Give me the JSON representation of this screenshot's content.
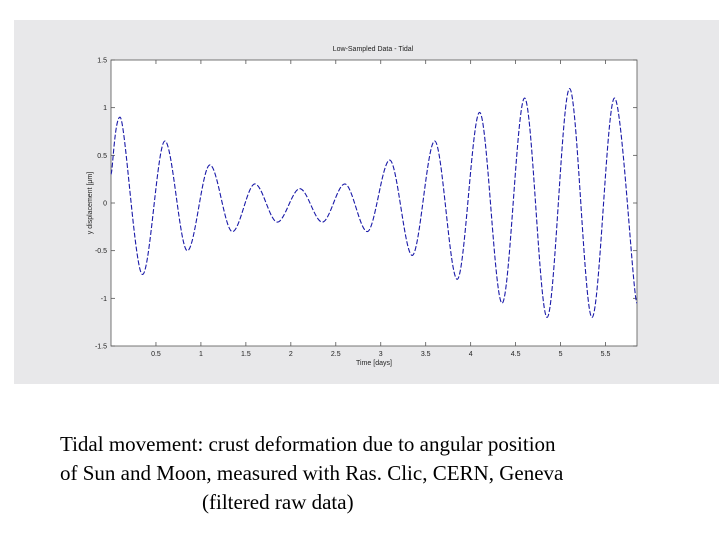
{
  "chart_data": {
    "type": "line",
    "title": "Low-Sampled Data - Tidal",
    "xlabel": "Time [days]",
    "ylabel": "y displacement [μm]",
    "xlim": [
      0,
      11.7
    ],
    "ylim": [
      -1.5,
      1.5
    ],
    "xticks": [
      {
        "value": 1,
        "label": "0.5"
      },
      {
        "value": 2,
        "label": "1"
      },
      {
        "value": 3,
        "label": "1.5"
      },
      {
        "value": 4,
        "label": "2"
      },
      {
        "value": 5,
        "label": "2.5"
      },
      {
        "value": 6,
        "label": "3"
      },
      {
        "value": 7,
        "label": "3.5"
      },
      {
        "value": 8,
        "label": "4"
      },
      {
        "value": 9,
        "label": "4.5"
      },
      {
        "value": 10,
        "label": "5"
      },
      {
        "value": 11,
        "label": "5.5"
      }
    ],
    "yticks": [
      {
        "value": 1.5,
        "label": "1.5"
      },
      {
        "value": 1,
        "label": "1"
      },
      {
        "value": 0.5,
        "label": "0.5"
      },
      {
        "value": 0,
        "label": "0"
      },
      {
        "value": -0.5,
        "label": "-0.5"
      },
      {
        "value": -1,
        "label": "-1"
      },
      {
        "value": -1.5,
        "label": "-1.5"
      }
    ],
    "series": [
      {
        "color": "#1a1aa8",
        "x": [
          0,
          0.2,
          0.7,
          1.2,
          1.7,
          2.2,
          2.7,
          3.2,
          3.7,
          4.2,
          4.7,
          5.2,
          5.7,
          6.2,
          6.7,
          7.2,
          7.7,
          8.2,
          8.7,
          9.2,
          9.7,
          10.2,
          10.7,
          11.2,
          11.7
        ],
        "y": [
          0.3,
          0.9,
          -0.75,
          0.65,
          -0.5,
          0.4,
          -0.3,
          0.2,
          -0.2,
          0.15,
          -0.2,
          0.2,
          -0.3,
          0.45,
          -0.55,
          0.65,
          -0.8,
          0.95,
          -1.05,
          1.1,
          -1.2,
          1.2,
          -1.2,
          1.1,
          -1.05
        ]
      }
    ],
    "grid": false
  },
  "caption": {
    "line1": "Tidal movement: crust deformation due to angular position",
    "line2": "of Sun and Moon, measured with Ras. Clic, CERN, Geneva",
    "line3": "(filtered raw data)"
  }
}
